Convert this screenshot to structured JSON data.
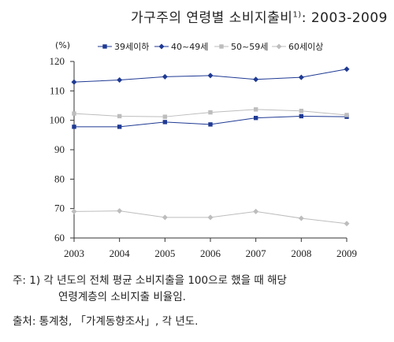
{
  "title": {
    "text": "가구주의 연령별 소비지출비",
    "footnote_mark": "1)",
    "suffix": ": 2003-2009"
  },
  "notes": {
    "note_line1": "주: 1) 각 년도의 전체 평균 소비지출을 100으로 했을 때 해당",
    "note_line2": "연령계층의 소비지출 비율임.",
    "source": "출처: 통계청, 「가계동향조사」, 각 년도."
  },
  "chart_data": {
    "type": "line",
    "unit_label": "(%)",
    "x": [
      "2003",
      "2004",
      "2005",
      "2006",
      "2007",
      "2008",
      "2009"
    ],
    "ylim": [
      60,
      120
    ],
    "yticks": [
      60,
      70,
      80,
      90,
      100,
      110,
      120
    ],
    "legend_position": "top",
    "grid": false,
    "series": [
      {
        "name": "39세이하",
        "color": "#1f3a93",
        "marker": "square",
        "values": [
          97.8,
          97.8,
          99.4,
          98.6,
          100.8,
          101.4,
          101.2
        ]
      },
      {
        "name": "40~49세",
        "color": "#1f3a93",
        "marker": "diamond",
        "values": [
          113.0,
          113.7,
          114.8,
          115.2,
          113.9,
          114.6,
          117.4
        ]
      },
      {
        "name": "50~59세",
        "color": "#bdbdbd",
        "marker": "square",
        "values": [
          102.3,
          101.4,
          101.2,
          102.7,
          103.7,
          103.2,
          101.8
        ]
      },
      {
        "name": "60세이상",
        "color": "#bdbdbd",
        "marker": "diamond",
        "values": [
          69.0,
          69.2,
          67.0,
          67.0,
          69.0,
          66.7,
          64.9
        ]
      }
    ]
  }
}
